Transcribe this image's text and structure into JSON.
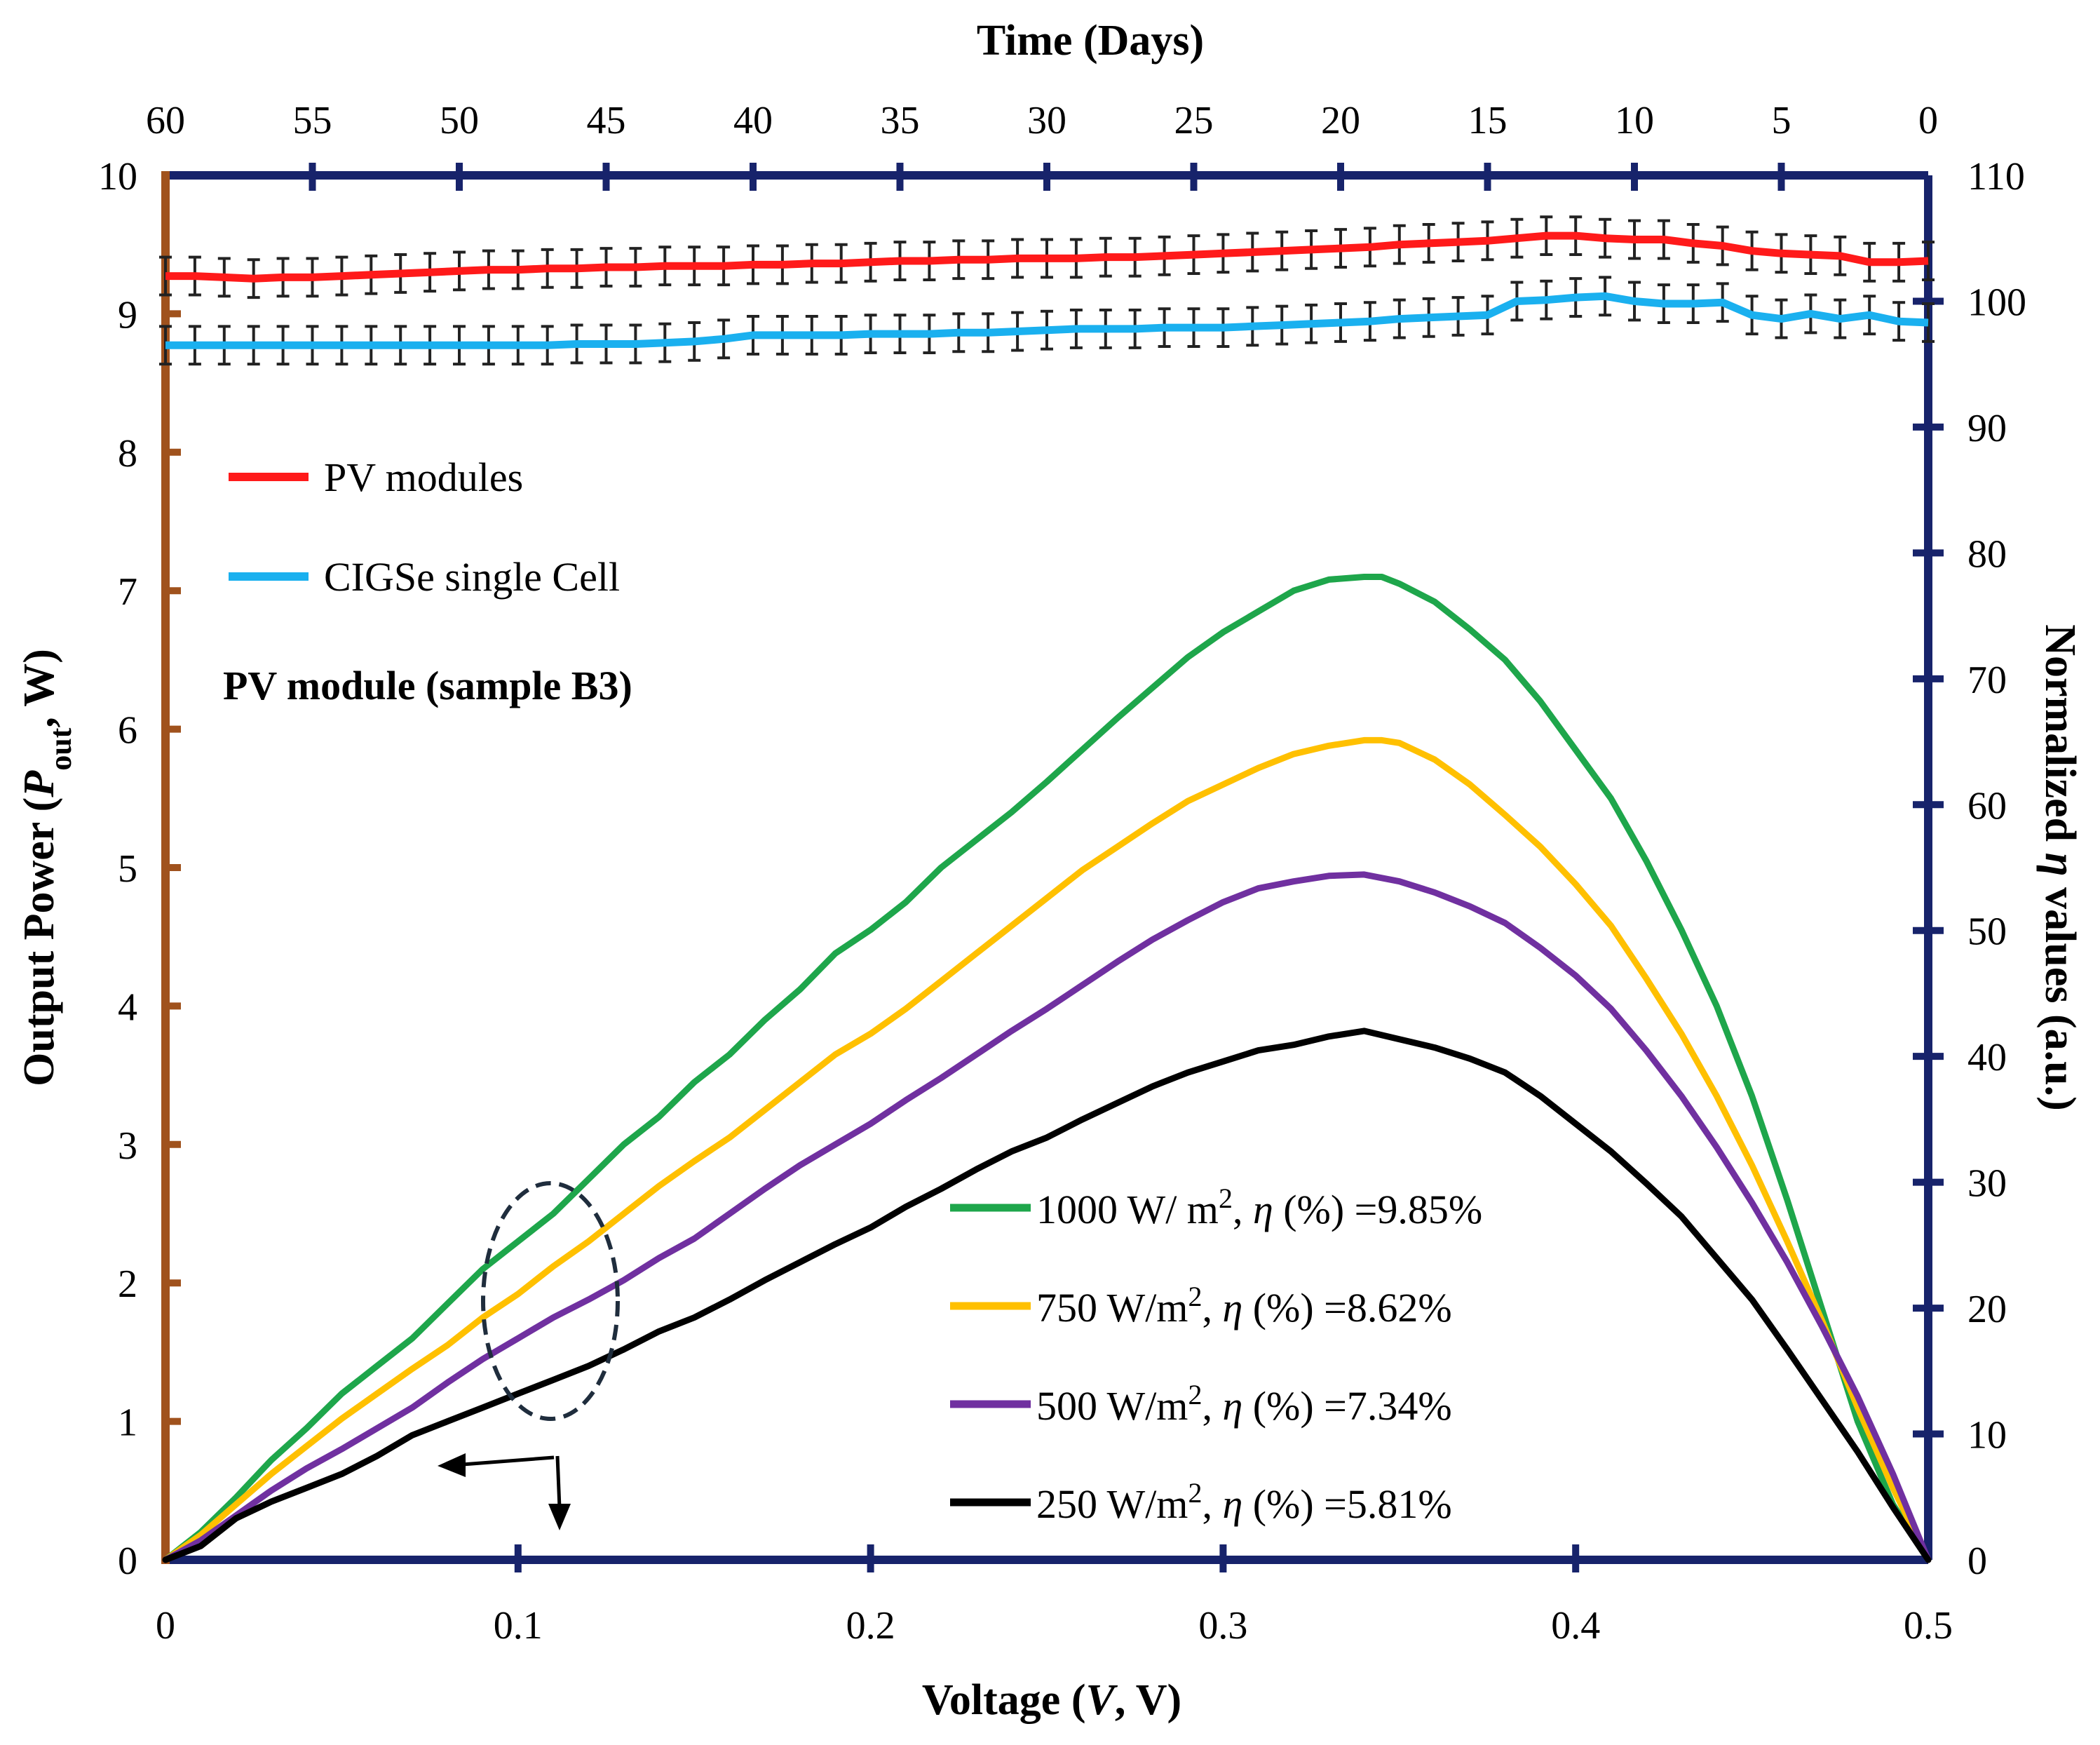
{
  "chart_data": {
    "type": "line",
    "title": "",
    "annotation": "PV module (sample B3)",
    "bottom_axis": {
      "label_parts": [
        "Voltage (",
        "V",
        ", V)"
      ],
      "range": [
        0,
        0.5
      ],
      "ticks": [
        "0",
        "0.1",
        "0.2",
        "0.3",
        "0.4",
        "0.5"
      ]
    },
    "top_axis": {
      "label": "Time (Days)",
      "range": [
        60,
        0
      ],
      "ticks": [
        "60",
        "55",
        "50",
        "45",
        "40",
        "35",
        "30",
        "25",
        "20",
        "15",
        "10",
        "5",
        "0"
      ]
    },
    "left_axis": {
      "label_parts": [
        "Output Power (",
        "P",
        "out",
        ", W)"
      ],
      "range": [
        0,
        10
      ],
      "ticks": [
        "0",
        "1",
        "2",
        "3",
        "4",
        "5",
        "6",
        "7",
        "8",
        "9",
        "10"
      ]
    },
    "right_axis": {
      "label_parts": [
        "Normalized ",
        "η",
        " values (a.u.)"
      ],
      "range": [
        0,
        110
      ],
      "ticks": [
        "0",
        "10",
        "20",
        "30",
        "40",
        "50",
        "60",
        "70",
        "80",
        "90",
        "100",
        "110"
      ]
    },
    "power_series": [
      {
        "name": "1000 W/ m2",
        "legend_main": "1000 W/ m",
        "legend_sup": "2",
        "legend_eta_prefix": ", ",
        "legend_eta": "η",
        "legend_eta_suffix": " (%) =9.85%",
        "color": "#1ea64b",
        "x": [
          0,
          0.01,
          0.02,
          0.03,
          0.04,
          0.05,
          0.06,
          0.07,
          0.08,
          0.09,
          0.1,
          0.11,
          0.12,
          0.13,
          0.14,
          0.15,
          0.16,
          0.17,
          0.18,
          0.19,
          0.2,
          0.21,
          0.22,
          0.23,
          0.24,
          0.25,
          0.26,
          0.27,
          0.28,
          0.29,
          0.3,
          0.31,
          0.32,
          0.33,
          0.34,
          0.345,
          0.35,
          0.36,
          0.37,
          0.38,
          0.39,
          0.4,
          0.41,
          0.42,
          0.43,
          0.44,
          0.45,
          0.46,
          0.47,
          0.48,
          0.49,
          0.5
        ],
        "y": [
          0,
          0.2,
          0.45,
          0.72,
          0.95,
          1.2,
          1.4,
          1.6,
          1.85,
          2.1,
          2.3,
          2.5,
          2.75,
          3.0,
          3.2,
          3.45,
          3.65,
          3.9,
          4.12,
          4.38,
          4.55,
          4.75,
          5.0,
          5.2,
          5.4,
          5.62,
          5.85,
          6.08,
          6.3,
          6.52,
          6.7,
          6.85,
          7.0,
          7.08,
          7.1,
          7.1,
          7.05,
          6.92,
          6.72,
          6.5,
          6.2,
          5.85,
          5.5,
          5.05,
          4.55,
          4.0,
          3.35,
          2.6,
          1.8,
          1.0,
          0.4,
          0.0
        ]
      },
      {
        "name": "750 W/m2",
        "legend_main": "750 W/m",
        "legend_sup": "2",
        "legend_eta_prefix": ", ",
        "legend_eta": "η",
        "legend_eta_suffix": " (%) =8.62%",
        "color": "#ffc000",
        "x": [
          0,
          0.01,
          0.02,
          0.03,
          0.04,
          0.05,
          0.06,
          0.07,
          0.08,
          0.09,
          0.1,
          0.11,
          0.12,
          0.13,
          0.14,
          0.15,
          0.16,
          0.17,
          0.18,
          0.19,
          0.2,
          0.21,
          0.22,
          0.23,
          0.24,
          0.25,
          0.26,
          0.27,
          0.28,
          0.29,
          0.3,
          0.31,
          0.32,
          0.33,
          0.34,
          0.345,
          0.35,
          0.36,
          0.37,
          0.38,
          0.39,
          0.4,
          0.41,
          0.42,
          0.43,
          0.44,
          0.45,
          0.46,
          0.47,
          0.48,
          0.49,
          0.5
        ],
        "y": [
          0,
          0.18,
          0.4,
          0.62,
          0.82,
          1.02,
          1.2,
          1.38,
          1.55,
          1.75,
          1.92,
          2.12,
          2.3,
          2.5,
          2.7,
          2.88,
          3.05,
          3.25,
          3.45,
          3.65,
          3.8,
          3.98,
          4.18,
          4.38,
          4.58,
          4.78,
          4.98,
          5.15,
          5.32,
          5.48,
          5.6,
          5.72,
          5.82,
          5.88,
          5.92,
          5.92,
          5.9,
          5.78,
          5.6,
          5.38,
          5.15,
          4.88,
          4.58,
          4.2,
          3.8,
          3.35,
          2.85,
          2.3,
          1.72,
          1.1,
          0.52,
          0.0
        ]
      },
      {
        "name": "500 W/m2",
        "legend_main": "500 W/m",
        "legend_sup": "2",
        "legend_eta_prefix": ", ",
        "legend_eta": "η",
        "legend_eta_suffix": " (%) =7.34%",
        "color": "#7030a0",
        "x": [
          0,
          0.01,
          0.02,
          0.03,
          0.04,
          0.05,
          0.06,
          0.07,
          0.08,
          0.09,
          0.1,
          0.11,
          0.12,
          0.13,
          0.14,
          0.15,
          0.16,
          0.17,
          0.18,
          0.19,
          0.2,
          0.21,
          0.22,
          0.23,
          0.24,
          0.25,
          0.26,
          0.27,
          0.28,
          0.29,
          0.3,
          0.31,
          0.32,
          0.33,
          0.34,
          0.35,
          0.36,
          0.37,
          0.38,
          0.39,
          0.4,
          0.41,
          0.42,
          0.43,
          0.44,
          0.45,
          0.46,
          0.47,
          0.48,
          0.49,
          0.5
        ],
        "y": [
          0,
          0.14,
          0.32,
          0.5,
          0.66,
          0.8,
          0.95,
          1.1,
          1.28,
          1.45,
          1.6,
          1.75,
          1.88,
          2.02,
          2.18,
          2.32,
          2.5,
          2.68,
          2.85,
          3.0,
          3.15,
          3.32,
          3.48,
          3.65,
          3.82,
          3.98,
          4.15,
          4.32,
          4.48,
          4.62,
          4.75,
          4.85,
          4.9,
          4.94,
          4.95,
          4.9,
          4.82,
          4.72,
          4.6,
          4.42,
          4.22,
          3.98,
          3.68,
          3.35,
          2.98,
          2.58,
          2.15,
          1.68,
          1.18,
          0.62,
          0.0
        ]
      },
      {
        "name": "250 W/m2",
        "legend_main": "250 W/m",
        "legend_sup": "2",
        "legend_eta_prefix": ", ",
        "legend_eta": "η",
        "legend_eta_suffix": " (%) =5.81%",
        "color": "#000000",
        "x": [
          0,
          0.01,
          0.02,
          0.03,
          0.04,
          0.05,
          0.06,
          0.07,
          0.08,
          0.09,
          0.1,
          0.11,
          0.12,
          0.13,
          0.14,
          0.15,
          0.16,
          0.17,
          0.18,
          0.19,
          0.2,
          0.21,
          0.22,
          0.23,
          0.24,
          0.25,
          0.26,
          0.27,
          0.28,
          0.29,
          0.3,
          0.31,
          0.32,
          0.33,
          0.34,
          0.35,
          0.36,
          0.37,
          0.38,
          0.39,
          0.4,
          0.41,
          0.42,
          0.43,
          0.44,
          0.45,
          0.46,
          0.47,
          0.48,
          0.49,
          0.5
        ],
        "y": [
          0,
          0.1,
          0.3,
          0.42,
          0.52,
          0.62,
          0.75,
          0.9,
          1.0,
          1.1,
          1.2,
          1.3,
          1.4,
          1.52,
          1.65,
          1.75,
          1.88,
          2.02,
          2.15,
          2.28,
          2.4,
          2.55,
          2.68,
          2.82,
          2.95,
          3.05,
          3.18,
          3.3,
          3.42,
          3.52,
          3.6,
          3.68,
          3.72,
          3.78,
          3.82,
          3.76,
          3.7,
          3.62,
          3.52,
          3.35,
          3.15,
          2.95,
          2.72,
          2.48,
          2.18,
          1.88,
          1.52,
          1.15,
          0.78,
          0.38,
          0.0
        ]
      }
    ],
    "efficiency_series": [
      {
        "name": "PV modules",
        "color": "#ff1a1a",
        "days": [
          60,
          59,
          58,
          57,
          56,
          55,
          54,
          53,
          52,
          51,
          50,
          49,
          48,
          47,
          46,
          45,
          44,
          43,
          42,
          41,
          40,
          39,
          38,
          37,
          36,
          35,
          34,
          33,
          32,
          31,
          30,
          29,
          28,
          27,
          26,
          25,
          24,
          23,
          22,
          21,
          20,
          19,
          18,
          17,
          16,
          15,
          14,
          13,
          12,
          11,
          10,
          9,
          8,
          7,
          6,
          5,
          4,
          3,
          2,
          1,
          0
        ],
        "values": [
          102.0,
          102.0,
          101.9,
          101.8,
          101.9,
          101.9,
          102.0,
          102.1,
          102.2,
          102.3,
          102.4,
          102.5,
          102.5,
          102.6,
          102.6,
          102.7,
          102.7,
          102.8,
          102.8,
          102.8,
          102.9,
          102.9,
          103.0,
          103.0,
          103.1,
          103.2,
          103.2,
          103.3,
          103.3,
          103.4,
          103.4,
          103.4,
          103.5,
          103.5,
          103.6,
          103.7,
          103.8,
          103.9,
          104.0,
          104.1,
          104.2,
          104.3,
          104.5,
          104.6,
          104.7,
          104.8,
          105.0,
          105.2,
          105.2,
          105.0,
          104.9,
          104.9,
          104.6,
          104.4,
          104.0,
          103.8,
          103.7,
          103.6,
          103.1,
          103.1,
          103.2
        ],
        "error": 1.5
      },
      {
        "name": "CIGSe single Cell",
        "color": "#1ab0ef",
        "days": [
          60,
          59,
          58,
          57,
          56,
          55,
          54,
          53,
          52,
          51,
          50,
          49,
          48,
          47,
          46,
          45,
          44,
          43,
          42,
          41,
          40,
          39,
          38,
          37,
          36,
          35,
          34,
          33,
          32,
          31,
          30,
          29,
          28,
          27,
          26,
          25,
          24,
          23,
          22,
          21,
          20,
          19,
          18,
          17,
          16,
          15,
          14,
          13,
          12,
          11,
          10,
          9,
          8,
          7,
          6,
          5,
          4,
          3,
          2,
          1,
          0
        ],
        "values": [
          96.5,
          96.5,
          96.5,
          96.5,
          96.5,
          96.5,
          96.5,
          96.5,
          96.5,
          96.5,
          96.5,
          96.5,
          96.5,
          96.5,
          96.6,
          96.6,
          96.6,
          96.7,
          96.8,
          97.0,
          97.3,
          97.3,
          97.3,
          97.3,
          97.4,
          97.4,
          97.4,
          97.5,
          97.5,
          97.6,
          97.7,
          97.8,
          97.8,
          97.8,
          97.9,
          97.9,
          97.9,
          98.0,
          98.1,
          98.2,
          98.3,
          98.4,
          98.6,
          98.7,
          98.8,
          98.9,
          100.0,
          100.1,
          100.3,
          100.4,
          100.0,
          99.8,
          99.8,
          99.9,
          98.9,
          98.6,
          99.0,
          98.6,
          98.9,
          98.4,
          98.3
        ],
        "error": 1.5
      }
    ],
    "legend_upper": [
      "PV modules",
      "CIGSe single Cell"
    ],
    "colors": {
      "left_axis": "#a0521d",
      "frame": "#17236b",
      "ellipse": "#1f2d3d"
    }
  }
}
